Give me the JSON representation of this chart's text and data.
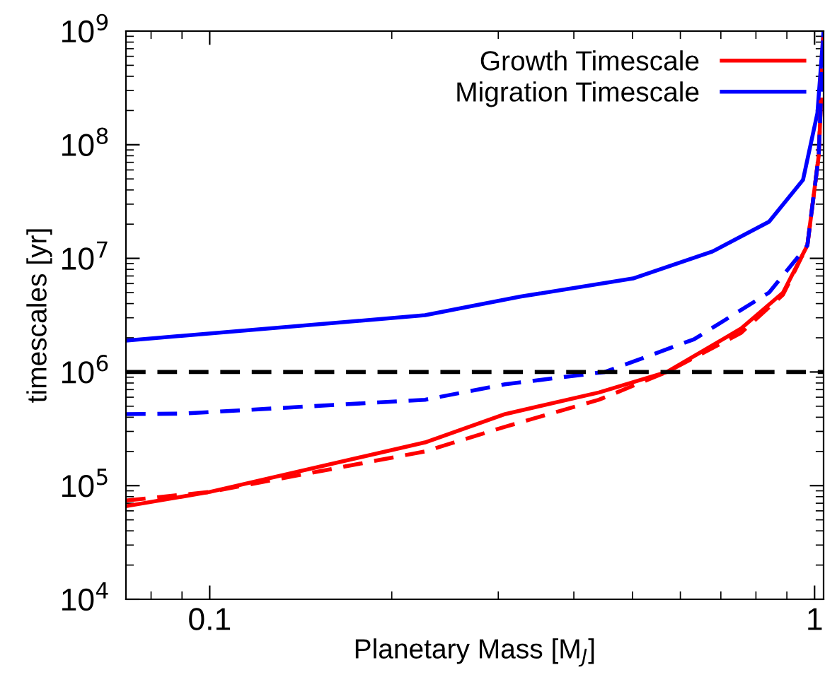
{
  "chart_data": {
    "type": "line",
    "xlabel": "Planetary Mass [M$_{J}$]",
    "ylabel": "timescales [yr]",
    "log": "xy",
    "xlim": [
      0.0727,
      1.035
    ],
    "ylim": [
      10000,
      1000000000
    ],
    "xticks": [
      0.1,
      1
    ],
    "yticks": [
      {
        "value": 10000,
        "label": "10$^{4}$"
      },
      {
        "value": 100000,
        "label": "10$^{5}$"
      },
      {
        "value": 1000000,
        "label": "10$^{6}$"
      },
      {
        "value": 10000000,
        "label": "10$^{7}$"
      },
      {
        "value": 100000000,
        "label": "10$^{8}$"
      },
      {
        "value": 1000000000,
        "label": "10$^{9}$"
      }
    ],
    "grid": false,
    "legend": "top right",
    "marker": "none",
    "ref_lines": [
      {
        "axis": "y",
        "value": 1000000,
        "color": "#000000",
        "line_style": "dashed"
      }
    ],
    "series": [
      {
        "name": "Growth Timescale",
        "color": "#ff0000",
        "line_style": "solid",
        "x": [
          0.0727,
          0.1,
          0.227,
          0.308,
          0.44,
          0.57,
          0.755,
          0.887,
          0.973,
          1.016,
          1.025
        ],
        "values": [
          66000,
          88000,
          240000,
          426000,
          660000,
          1000000,
          2400000,
          5000000,
          13000000,
          80000000,
          250000000
        ]
      },
      {
        "name": "Migration Timescale",
        "color": "#0000ff",
        "line_style": "solid",
        "x": [
          0.0727,
          0.227,
          0.326,
          0.501,
          0.678,
          0.841,
          0.957,
          1.011,
          1.035
        ],
        "values": [
          1890000,
          3160000,
          4600000,
          6650000,
          11500000,
          21000000,
          49000000,
          190000000,
          1000000000
        ]
      },
      {
        "color": "#ff0000",
        "line_style": "dashed",
        "x": [
          0.0727,
          0.1,
          0.227,
          0.308,
          0.44,
          0.57,
          0.755,
          0.887,
          0.973,
          1.016,
          1.035
        ],
        "values": [
          74000,
          88000,
          200000,
          330000,
          570000,
          1000000,
          2200000,
          4800000,
          13000000,
          80000000,
          1000000000
        ]
      },
      {
        "color": "#0000ff",
        "line_style": "dashed",
        "x": [
          0.0727,
          0.09,
          0.227,
          0.308,
          0.45,
          0.632,
          0.841,
          0.973,
          1.016,
          1.035
        ],
        "values": [
          426000,
          430000,
          570000,
          780000,
          1000000,
          1940000,
          5000000,
          13000000,
          80000000,
          1000000000
        ]
      }
    ]
  }
}
